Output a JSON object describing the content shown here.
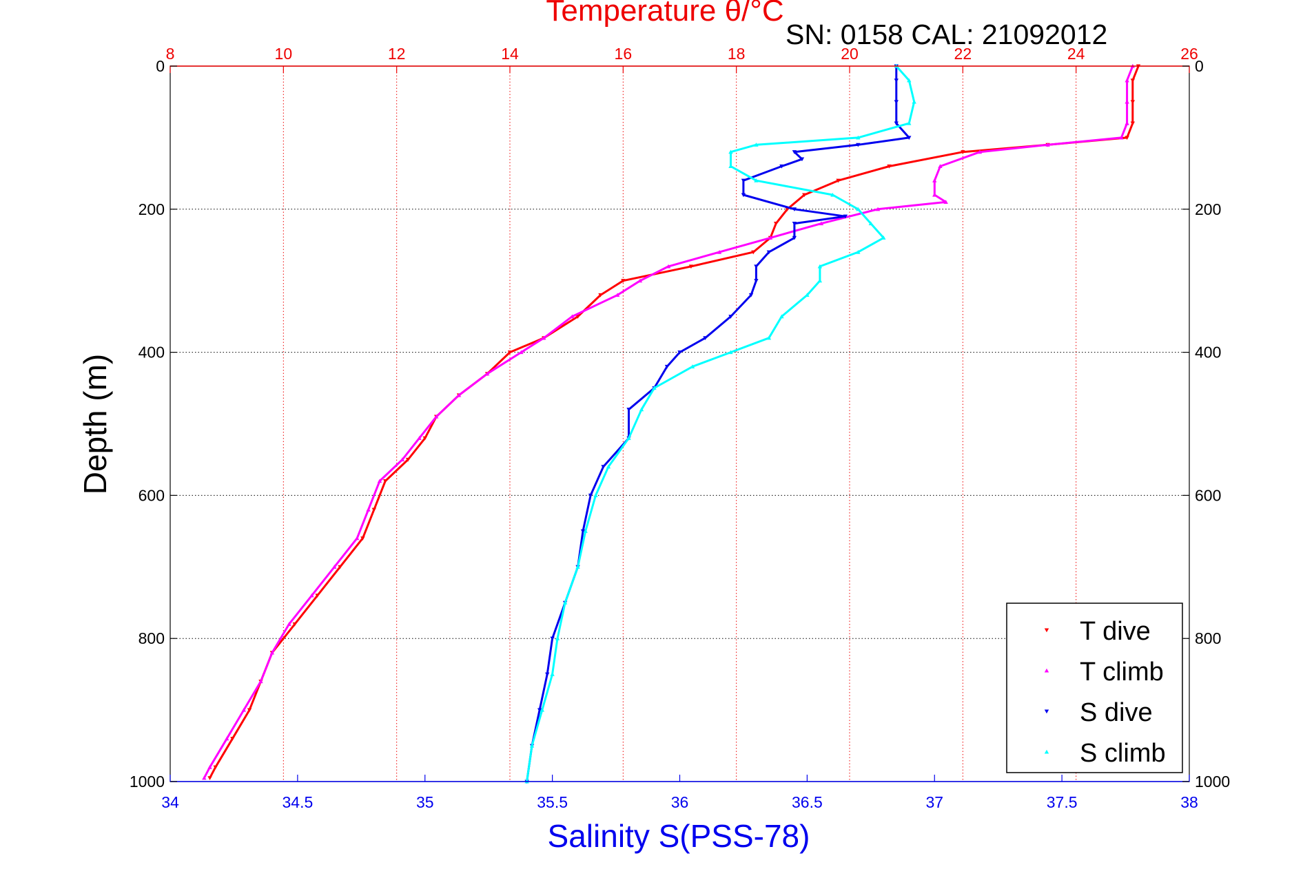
{
  "chart_data": {
    "type": "scatter",
    "title": "Temperature θ/°C",
    "subtitle": "SN: 0158  CAL: 21092012",
    "xlabel": "Salinity S(PSS-78)",
    "x2label": "Temperature θ/°C",
    "ylabel": "Depth (m)",
    "xlim": [
      34,
      38
    ],
    "x2lim": [
      8,
      26
    ],
    "ylim": [
      0,
      1000
    ],
    "y_reversed": true,
    "grid": true,
    "legend_position": "bottom-right",
    "x_ticks": [
      "34",
      "34.5",
      "35",
      "35.5",
      "36",
      "36.5",
      "37",
      "37.5",
      "38"
    ],
    "x2_ticks": [
      "8",
      "10",
      "12",
      "14",
      "16",
      "18",
      "20",
      "22",
      "24",
      "26"
    ],
    "y_ticks": [
      "0",
      "200",
      "400",
      "600",
      "800",
      "1000"
    ],
    "series": [
      {
        "name": "T dive",
        "axis": "temperature",
        "color": "#ff0000",
        "marker": "triangle-down",
        "depth": [
          0,
          20,
          50,
          80,
          100,
          110,
          120,
          140,
          160,
          180,
          200,
          220,
          240,
          260,
          280,
          300,
          320,
          350,
          380,
          400,
          430,
          460,
          490,
          520,
          550,
          580,
          620,
          660,
          700,
          740,
          780,
          820,
          860,
          900,
          940,
          980,
          995
        ],
        "values": [
          25.1,
          25.0,
          25.0,
          25.0,
          24.9,
          23.5,
          22.0,
          20.7,
          19.8,
          19.2,
          18.9,
          18.7,
          18.6,
          18.3,
          17.2,
          16.0,
          15.6,
          15.2,
          14.6,
          14.0,
          13.6,
          13.1,
          12.7,
          12.5,
          12.2,
          11.8,
          11.6,
          11.4,
          11.0,
          10.6,
          10.2,
          9.8,
          9.6,
          9.4,
          9.1,
          8.8,
          8.7
        ]
      },
      {
        "name": "T climb",
        "axis": "temperature",
        "color": "#ff00ff",
        "marker": "triangle-up",
        "depth": [
          0,
          20,
          50,
          80,
          100,
          110,
          120,
          140,
          160,
          180,
          190,
          200,
          220,
          240,
          260,
          280,
          300,
          320,
          350,
          380,
          400,
          430,
          460,
          490,
          520,
          550,
          580,
          620,
          660,
          700,
          740,
          780,
          820,
          860,
          900,
          940,
          980,
          995
        ],
        "values": [
          25.0,
          24.9,
          24.9,
          24.9,
          24.8,
          23.5,
          22.3,
          21.6,
          21.5,
          21.5,
          21.7,
          20.5,
          19.5,
          18.6,
          17.7,
          16.8,
          16.3,
          15.9,
          15.1,
          14.6,
          14.2,
          13.6,
          13.1,
          12.7,
          12.4,
          12.1,
          11.7,
          11.5,
          11.3,
          10.9,
          10.5,
          10.1,
          9.8,
          9.6,
          9.3,
          9.0,
          8.7,
          8.6
        ]
      },
      {
        "name": "S dive",
        "axis": "salinity",
        "color": "#0000ee",
        "marker": "triangle-down",
        "depth": [
          0,
          20,
          50,
          80,
          100,
          110,
          120,
          130,
          140,
          160,
          180,
          200,
          210,
          220,
          240,
          260,
          280,
          300,
          320,
          350,
          380,
          400,
          420,
          450,
          480,
          520,
          560,
          600,
          650,
          700,
          750,
          800,
          850,
          900,
          950,
          1000
        ],
        "salinity": [
          36.85,
          36.85,
          36.85,
          36.85,
          36.9,
          36.7,
          36.45,
          36.48,
          36.4,
          36.25,
          36.25,
          36.45,
          36.65,
          36.45,
          36.45,
          36.35,
          36.3,
          36.3,
          36.28,
          36.2,
          36.1,
          36.0,
          35.95,
          35.9,
          35.8,
          35.8,
          35.7,
          35.65,
          35.62,
          35.6,
          35.55,
          35.5,
          35.48,
          35.45,
          35.42,
          35.4
        ]
      },
      {
        "name": "S climb",
        "axis": "salinity",
        "color": "#00ffff",
        "marker": "triangle-up",
        "depth": [
          0,
          20,
          50,
          80,
          100,
          110,
          120,
          140,
          160,
          180,
          200,
          220,
          240,
          260,
          280,
          300,
          320,
          350,
          380,
          400,
          420,
          450,
          480,
          520,
          560,
          600,
          650,
          700,
          750,
          800,
          850,
          900,
          950,
          1000
        ],
        "salinity": [
          36.85,
          36.9,
          36.92,
          36.9,
          36.7,
          36.3,
          36.2,
          36.2,
          36.3,
          36.6,
          36.7,
          36.75,
          36.8,
          36.7,
          36.55,
          36.55,
          36.5,
          36.4,
          36.35,
          36.2,
          36.05,
          35.9,
          35.85,
          35.8,
          35.72,
          35.67,
          35.63,
          35.6,
          35.55,
          35.52,
          35.5,
          35.46,
          35.42,
          35.4
        ]
      }
    ],
    "legend": [
      {
        "label": "T dive",
        "color": "#ff0000",
        "marker": "triangle-down"
      },
      {
        "label": "T climb",
        "color": "#ff00ff",
        "marker": "triangle-up"
      },
      {
        "label": "S dive",
        "color": "#0000ee",
        "marker": "triangle-down"
      },
      {
        "label": "S climb",
        "color": "#00ffff",
        "marker": "triangle-up"
      }
    ]
  }
}
